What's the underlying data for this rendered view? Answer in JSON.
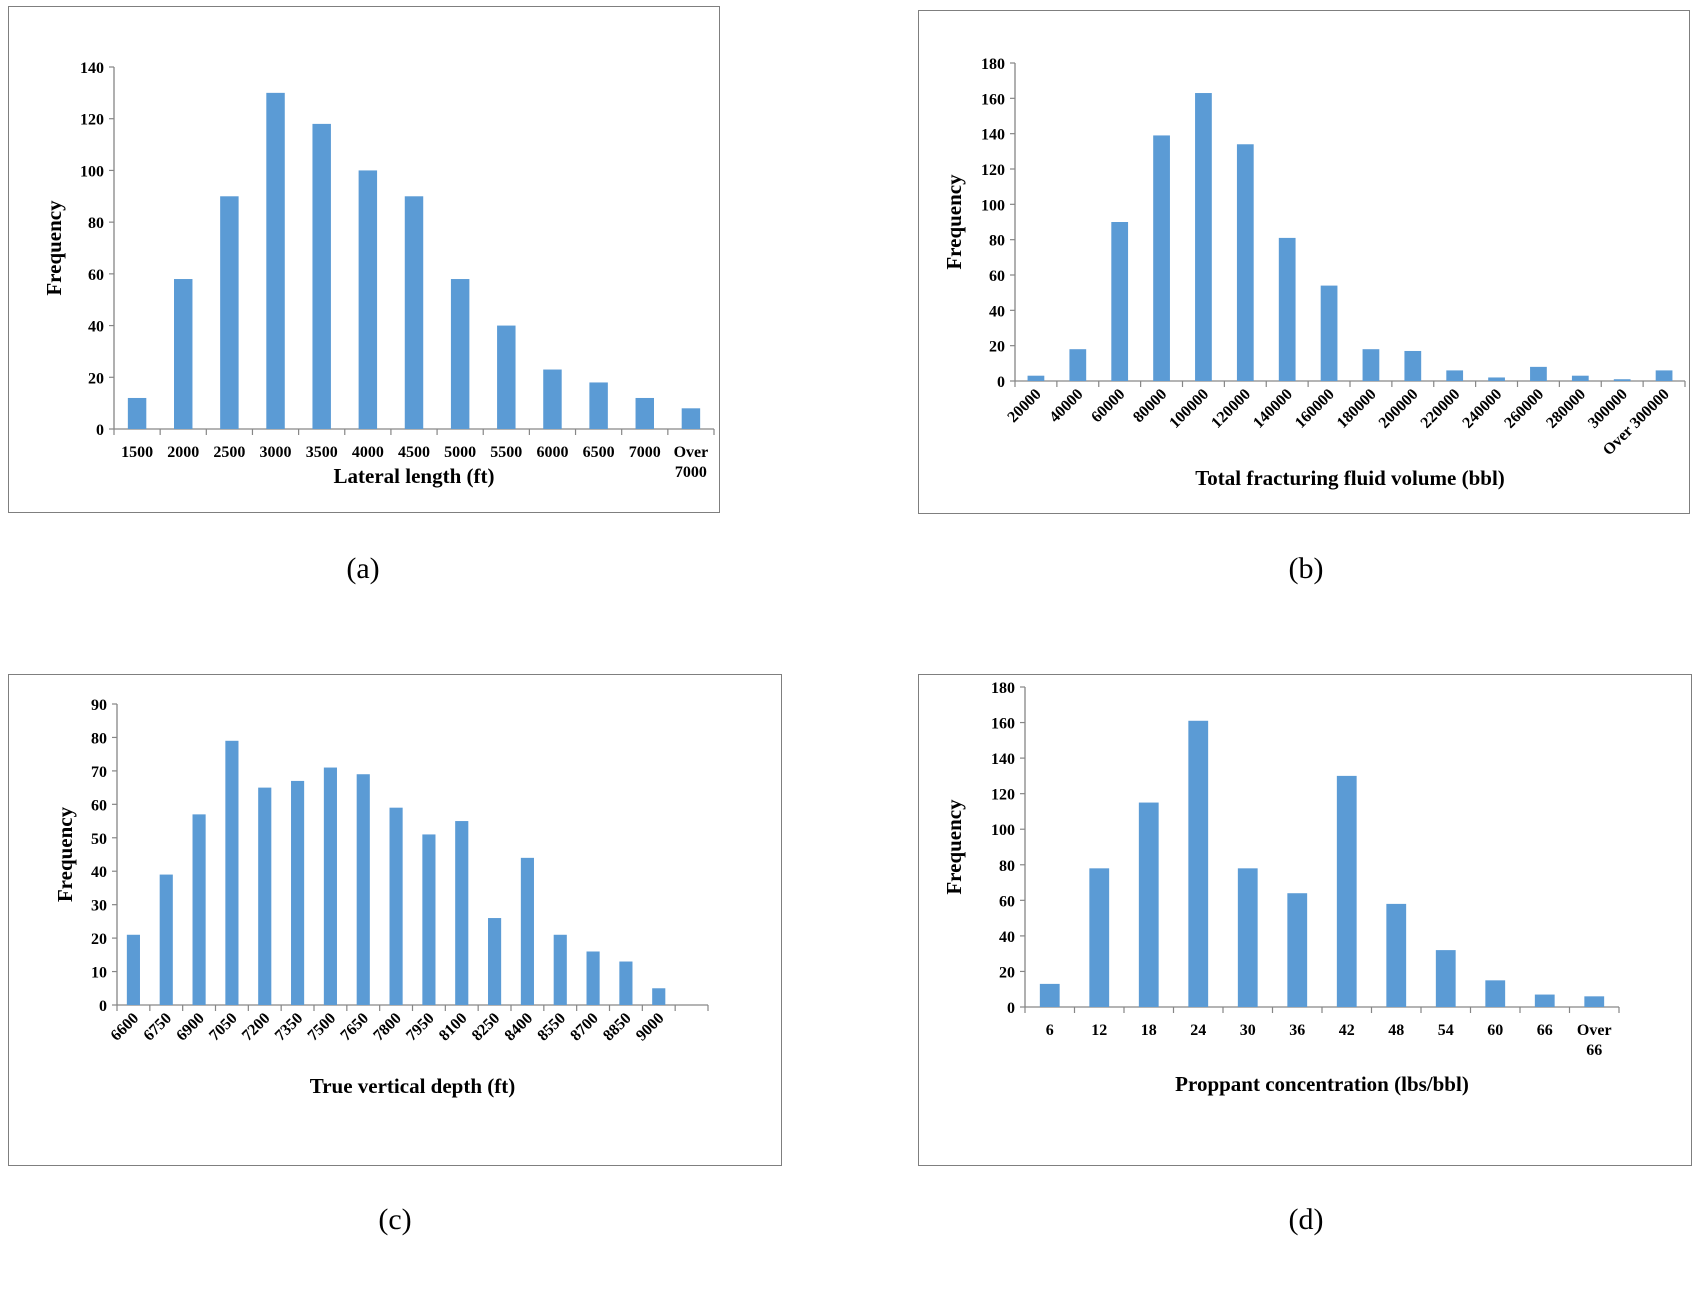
{
  "colors": {
    "bar": "#5b9bd5",
    "axis": "#868686"
  },
  "captions": [
    "(a)",
    "(b)",
    "(c)",
    "(d)"
  ],
  "chart_data": [
    {
      "type": "bar",
      "categories": [
        "1500",
        "2000",
        "2500",
        "3000",
        "3500",
        "4000",
        "4500",
        "5000",
        "5500",
        "6000",
        "6500",
        "7000",
        "Over 7000"
      ],
      "values": [
        12,
        58,
        90,
        130,
        118,
        100,
        90,
        58,
        40,
        23,
        18,
        12,
        8
      ],
      "xlabel": "Lateral length (ft)",
      "ylabel": "Frequency",
      "ylim": [
        0,
        140
      ],
      "yticks": [
        0,
        20,
        40,
        60,
        80,
        100,
        120,
        140
      ],
      "grid": false,
      "legend": "none"
    },
    {
      "type": "bar",
      "categories": [
        "20000",
        "40000",
        "60000",
        "80000",
        "100000",
        "120000",
        "140000",
        "160000",
        "180000",
        "200000",
        "220000",
        "240000",
        "260000",
        "280000",
        "300000",
        "Over 300000"
      ],
      "values": [
        3,
        18,
        90,
        139,
        163,
        134,
        81,
        54,
        18,
        17,
        6,
        2,
        8,
        3,
        1,
        6
      ],
      "xlabel": "Total fracturing fluid volume (bbl)",
      "ylabel": "Frequency",
      "ylim": [
        0,
        180
      ],
      "yticks": [
        0,
        20,
        40,
        60,
        80,
        100,
        120,
        140,
        160,
        180
      ],
      "grid": false,
      "legend": "none"
    },
    {
      "type": "bar",
      "categories": [
        "6600",
        "6750",
        "6900",
        "7050",
        "7200",
        "7350",
        "7500",
        "7650",
        "7800",
        "7950",
        "8100",
        "8250",
        "8400",
        "8550",
        "8700",
        "8850",
        "9000",
        ""
      ],
      "values": [
        21,
        39,
        57,
        79,
        65,
        67,
        71,
        69,
        59,
        51,
        55,
        26,
        44,
        21,
        16,
        13,
        5,
        0
      ],
      "xlabel": "True vertical depth (ft)",
      "ylabel": "Frequency",
      "ylim": [
        0,
        90
      ],
      "yticks": [
        0,
        10,
        20,
        30,
        40,
        50,
        60,
        70,
        80,
        90
      ],
      "grid": false,
      "legend": "none"
    },
    {
      "type": "bar",
      "categories": [
        "6",
        "12",
        "18",
        "24",
        "30",
        "36",
        "42",
        "48",
        "54",
        "60",
        "66",
        "Over 66"
      ],
      "values": [
        13,
        78,
        115,
        161,
        78,
        64,
        130,
        58,
        32,
        15,
        7,
        6
      ],
      "xlabel": "Proppant concentration (lbs/bbl)",
      "ylabel": "Frequency",
      "ylim": [
        0,
        180
      ],
      "yticks": [
        0,
        20,
        40,
        60,
        80,
        100,
        120,
        140,
        160,
        180
      ],
      "grid": false,
      "legend": "none"
    }
  ]
}
